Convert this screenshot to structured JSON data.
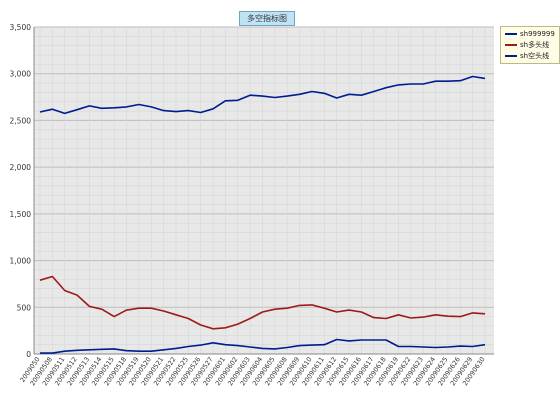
{
  "chart_data": {
    "type": "line",
    "title": "多空指标图",
    "xlabel": "",
    "ylabel": "",
    "ylim": [
      0,
      3500
    ],
    "y_ticks": [
      "0",
      "500",
      "1,000",
      "1,500",
      "2,000",
      "2,500",
      "3,000",
      "3,500"
    ],
    "grid": true,
    "legend_position": "top-right",
    "categories": [
      "2009050",
      "20090508",
      "20090511",
      "20090512",
      "20090513",
      "20090514",
      "20090515",
      "20090518",
      "20090519",
      "20090520",
      "20090521",
      "20090522",
      "20090525",
      "20090526",
      "20090527",
      "20090601",
      "20090602",
      "20090603",
      "20090604",
      "20090605",
      "20090608",
      "20090609",
      "20090610",
      "20090611",
      "20090612",
      "20090615",
      "20090616",
      "20090617",
      "20090618",
      "20090619",
      "20090622",
      "20090623",
      "20090624",
      "20090625",
      "20090626",
      "20090629",
      "20090630"
    ],
    "series": [
      {
        "name": "sh999999",
        "color": "#001c8f",
        "values": [
          2590,
          2620,
          2575,
          2615,
          2655,
          2630,
          2635,
          2645,
          2670,
          2645,
          2605,
          2595,
          2605,
          2585,
          2625,
          2710,
          2715,
          2770,
          2760,
          2745,
          2760,
          2780,
          2810,
          2790,
          2740,
          2780,
          2770,
          2810,
          2850,
          2880,
          2890,
          2890,
          2920,
          2920,
          2925,
          2970,
          2950
        ]
      },
      {
        "name": "sh多头线",
        "color": "#9e1a1a",
        "values": [
          790,
          830,
          680,
          630,
          510,
          480,
          400,
          470,
          490,
          490,
          460,
          420,
          380,
          310,
          270,
          280,
          320,
          380,
          450,
          480,
          490,
          520,
          525,
          490,
          450,
          470,
          450,
          390,
          380,
          420,
          385,
          395,
          420,
          405,
          400,
          440,
          430
        ]
      },
      {
        "name": "sh空头线",
        "color": "#001c8f",
        "values": [
          10,
          10,
          30,
          40,
          45,
          50,
          55,
          35,
          30,
          30,
          45,
          60,
          80,
          95,
          120,
          100,
          90,
          75,
          60,
          55,
          70,
          90,
          95,
          100,
          155,
          140,
          150,
          150,
          150,
          80,
          80,
          75,
          70,
          75,
          85,
          80,
          100
        ]
      }
    ]
  }
}
